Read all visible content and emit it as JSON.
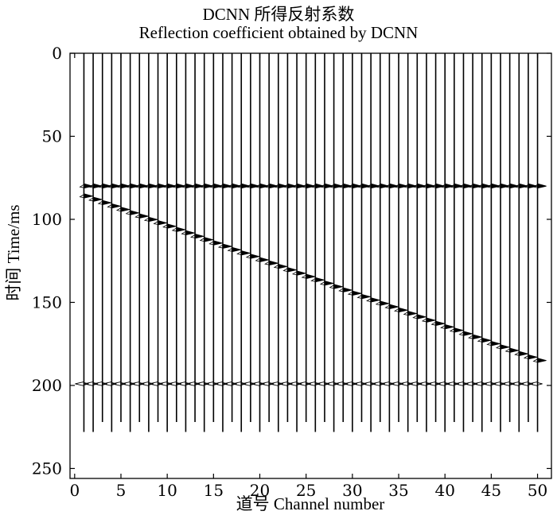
{
  "chart_data": {
    "type": "wiggle-trace",
    "title_cn": "DCNN 所得反射系数",
    "title": "Reflection coefficient obtained by DCNN",
    "xlabel": "道号 Channel number",
    "ylabel": "时间 Time/ms",
    "xlim": [
      -0.5,
      51.5
    ],
    "ylim": [
      0,
      256
    ],
    "y_inverted": true,
    "xticks": [
      0,
      5,
      10,
      15,
      20,
      25,
      30,
      35,
      40,
      45,
      50
    ],
    "yticks": [
      0,
      50,
      100,
      150,
      200,
      250
    ],
    "grid": false,
    "channels": {
      "start": 1,
      "end": 50
    },
    "trace_ranges": [
      {
        "channel": 1,
        "range": [
          0,
          228
        ]
      },
      {
        "channel": 2,
        "range": [
          0,
          228
        ]
      },
      {
        "channel": 3,
        "range": [
          0,
          222
        ]
      },
      {
        "channel": 4,
        "range": [
          0,
          228
        ]
      },
      {
        "channel": 5,
        "range": [
          0,
          222
        ]
      },
      {
        "channel": 6,
        "range": [
          0,
          228
        ]
      },
      {
        "channel": 7,
        "range": [
          0,
          222
        ]
      },
      {
        "channel": 8,
        "range": [
          0,
          228
        ]
      },
      {
        "channel": 9,
        "range": [
          0,
          222
        ]
      },
      {
        "channel": 10,
        "range": [
          0,
          228
        ]
      },
      {
        "channel": 11,
        "range": [
          0,
          222
        ]
      },
      {
        "channel": 12,
        "range": [
          0,
          228
        ]
      },
      {
        "channel": 13,
        "range": [
          0,
          222
        ]
      },
      {
        "channel": 14,
        "range": [
          0,
          228
        ]
      },
      {
        "channel": 15,
        "range": [
          0,
          222
        ]
      },
      {
        "channel": 16,
        "range": [
          0,
          228
        ]
      },
      {
        "channel": 17,
        "range": [
          0,
          222
        ]
      },
      {
        "channel": 18,
        "range": [
          0,
          228
        ]
      },
      {
        "channel": 19,
        "range": [
          0,
          222
        ]
      },
      {
        "channel": 20,
        "range": [
          0,
          228
        ]
      },
      {
        "channel": 21,
        "range": [
          0,
          222
        ]
      },
      {
        "channel": 22,
        "range": [
          0,
          228
        ]
      },
      {
        "channel": 23,
        "range": [
          0,
          222
        ]
      },
      {
        "channel": 24,
        "range": [
          0,
          228
        ]
      },
      {
        "channel": 25,
        "range": [
          0,
          222
        ]
      },
      {
        "channel": 26,
        "range": [
          0,
          228
        ]
      },
      {
        "channel": 27,
        "range": [
          0,
          222
        ]
      },
      {
        "channel": 28,
        "range": [
          0,
          228
        ]
      },
      {
        "channel": 29,
        "range": [
          0,
          222
        ]
      },
      {
        "channel": 30,
        "range": [
          0,
          228
        ]
      },
      {
        "channel": 31,
        "range": [
          0,
          222
        ]
      },
      {
        "channel": 32,
        "range": [
          0,
          228
        ]
      },
      {
        "channel": 33,
        "range": [
          0,
          222
        ]
      },
      {
        "channel": 34,
        "range": [
          0,
          228
        ]
      },
      {
        "channel": 35,
        "range": [
          0,
          222
        ]
      },
      {
        "channel": 36,
        "range": [
          0,
          228
        ]
      },
      {
        "channel": 37,
        "range": [
          0,
          222
        ]
      },
      {
        "channel": 38,
        "range": [
          0,
          228
        ]
      },
      {
        "channel": 39,
        "range": [
          0,
          222
        ]
      },
      {
        "channel": 40,
        "range": [
          0,
          228
        ]
      },
      {
        "channel": 41,
        "range": [
          0,
          222
        ]
      },
      {
        "channel": 42,
        "range": [
          0,
          228
        ]
      },
      {
        "channel": 43,
        "range": [
          0,
          222
        ]
      },
      {
        "channel": 44,
        "range": [
          0,
          228
        ]
      },
      {
        "channel": 45,
        "range": [
          0,
          222
        ]
      },
      {
        "channel": 46,
        "range": [
          0,
          228
        ]
      },
      {
        "channel": 47,
        "range": [
          0,
          222
        ]
      },
      {
        "channel": 48,
        "range": [
          0,
          228
        ]
      },
      {
        "channel": 49,
        "range": [
          0,
          222
        ]
      },
      {
        "channel": 50,
        "range": [
          0,
          228
        ]
      }
    ],
    "reflectors": [
      {
        "name": "flat-reflector-1",
        "shape": "flat",
        "time_ms": 80,
        "polarity": "positive"
      },
      {
        "name": "dipping-reflector",
        "shape": "linear",
        "time_ms_at_channel_1": 86,
        "time_ms_at_channel_50": 185,
        "polarity": "positive"
      },
      {
        "name": "flat-reflector-2",
        "shape": "flat",
        "time_ms": 199,
        "polarity": "negative"
      }
    ],
    "colors": {
      "trace": "#000000",
      "axis": "#000000",
      "background": "#ffffff"
    }
  }
}
